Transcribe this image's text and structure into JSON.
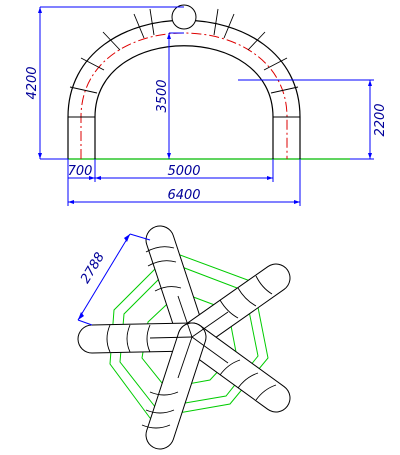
{
  "elevation": {
    "dimensions": {
      "total_height": "4200",
      "inner_height": "3500",
      "spring_height": "2200",
      "leg_offset": "700",
      "inner_span": "5000",
      "total_width": "6400"
    }
  },
  "plan": {
    "dimensions": {
      "arm_length": "2788"
    }
  },
  "colors": {
    "dimension": "#0000ff",
    "dimension_text": "#000099",
    "centerline": "#dd0000",
    "ground": "#00bb00",
    "guide_polygons": "#00cc00",
    "outline": "#000000"
  }
}
